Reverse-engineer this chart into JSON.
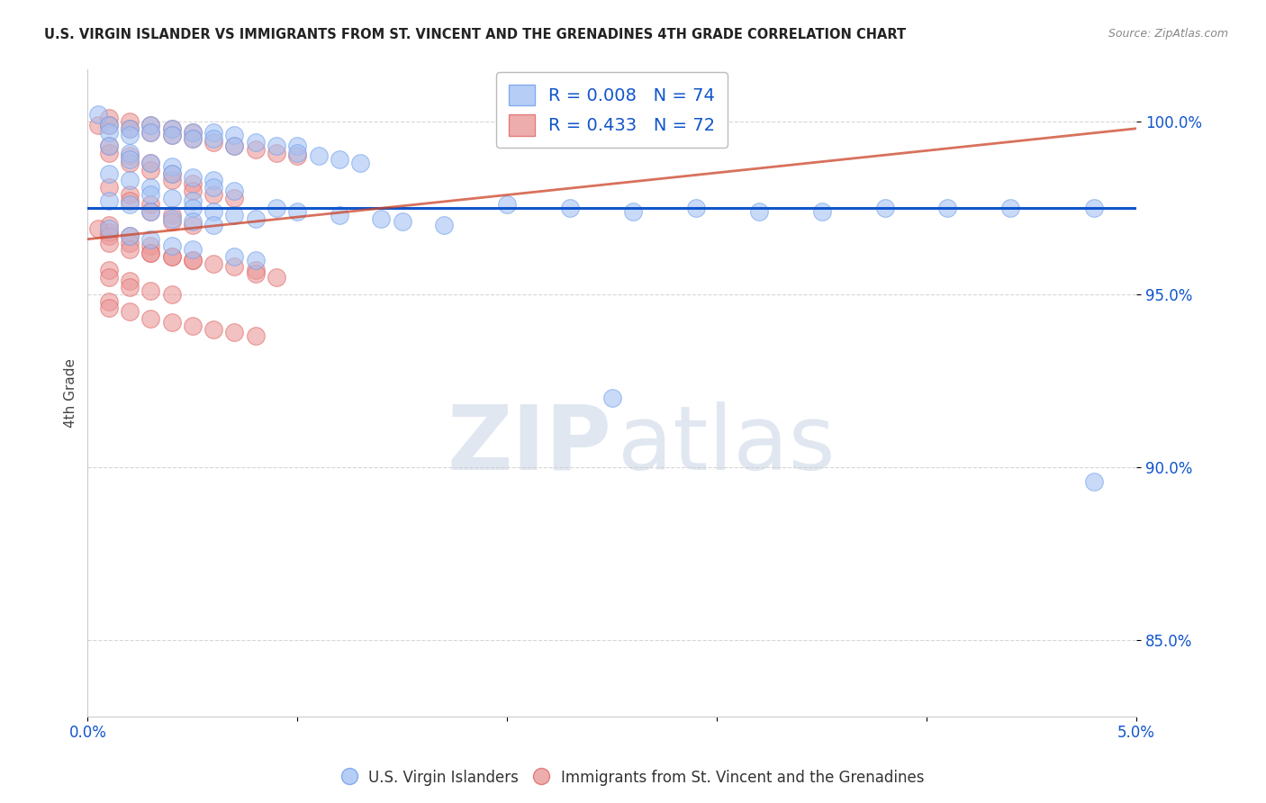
{
  "title": "U.S. VIRGIN ISLANDER VS IMMIGRANTS FROM ST. VINCENT AND THE GRENADINES 4TH GRADE CORRELATION CHART",
  "source": "Source: ZipAtlas.com",
  "ylabel": "4th Grade",
  "xlim": [
    0.0,
    0.05
  ],
  "ylim": [
    0.828,
    1.015
  ],
  "yticks": [
    0.85,
    0.9,
    0.95,
    1.0
  ],
  "yticklabels": [
    "85.0%",
    "90.0%",
    "95.0%",
    "100.0%"
  ],
  "blue_color": "#a4c2f4",
  "pink_color": "#ea9999",
  "blue_edge_color": "#6d9eeb",
  "pink_edge_color": "#e06666",
  "blue_line_color": "#1155cc",
  "pink_line_color": "#cc4125",
  "legend_R_blue": "0.008",
  "legend_N_blue": "74",
  "legend_R_pink": "0.433",
  "legend_N_pink": "72",
  "legend_label_blue": "U.S. Virgin Islanders",
  "legend_label_pink": "Immigrants from St. Vincent and the Grenadines",
  "watermark_zip": "ZIP",
  "watermark_atlas": "atlas",
  "background_color": "#ffffff",
  "grid_color": "#cccccc",
  "tick_color": "#1155cc",
  "blue_line_y": 0.975,
  "pink_line_y0": 0.966,
  "pink_line_y1": 0.998,
  "blue_scatter": [
    [
      0.0005,
      1.002
    ],
    [
      0.001,
      0.999
    ],
    [
      0.001,
      0.997
    ],
    [
      0.002,
      0.998
    ],
    [
      0.002,
      0.996
    ],
    [
      0.003,
      0.999
    ],
    [
      0.003,
      0.997
    ],
    [
      0.004,
      0.998
    ],
    [
      0.004,
      0.996
    ],
    [
      0.005,
      0.997
    ],
    [
      0.005,
      0.995
    ],
    [
      0.006,
      0.997
    ],
    [
      0.006,
      0.995
    ],
    [
      0.007,
      0.996
    ],
    [
      0.007,
      0.993
    ],
    [
      0.008,
      0.994
    ],
    [
      0.009,
      0.993
    ],
    [
      0.01,
      0.993
    ],
    [
      0.01,
      0.991
    ],
    [
      0.011,
      0.99
    ],
    [
      0.012,
      0.989
    ],
    [
      0.013,
      0.988
    ],
    [
      0.001,
      0.993
    ],
    [
      0.002,
      0.991
    ],
    [
      0.002,
      0.989
    ],
    [
      0.003,
      0.988
    ],
    [
      0.004,
      0.987
    ],
    [
      0.004,
      0.985
    ],
    [
      0.005,
      0.984
    ],
    [
      0.006,
      0.983
    ],
    [
      0.006,
      0.981
    ],
    [
      0.007,
      0.98
    ],
    [
      0.001,
      0.985
    ],
    [
      0.002,
      0.983
    ],
    [
      0.003,
      0.981
    ],
    [
      0.003,
      0.979
    ],
    [
      0.004,
      0.978
    ],
    [
      0.005,
      0.977
    ],
    [
      0.005,
      0.975
    ],
    [
      0.006,
      0.974
    ],
    [
      0.007,
      0.973
    ],
    [
      0.008,
      0.972
    ],
    [
      0.001,
      0.977
    ],
    [
      0.002,
      0.976
    ],
    [
      0.003,
      0.974
    ],
    [
      0.004,
      0.972
    ],
    [
      0.005,
      0.971
    ],
    [
      0.006,
      0.97
    ],
    [
      0.001,
      0.969
    ],
    [
      0.002,
      0.967
    ],
    [
      0.003,
      0.966
    ],
    [
      0.004,
      0.964
    ],
    [
      0.005,
      0.963
    ],
    [
      0.007,
      0.961
    ],
    [
      0.008,
      0.96
    ],
    [
      0.009,
      0.975
    ],
    [
      0.01,
      0.974
    ],
    [
      0.012,
      0.973
    ],
    [
      0.014,
      0.972
    ],
    [
      0.015,
      0.971
    ],
    [
      0.017,
      0.97
    ],
    [
      0.02,
      0.976
    ],
    [
      0.023,
      0.975
    ],
    [
      0.026,
      0.974
    ],
    [
      0.029,
      0.975
    ],
    [
      0.032,
      0.974
    ],
    [
      0.035,
      0.974
    ],
    [
      0.038,
      0.975
    ],
    [
      0.041,
      0.975
    ],
    [
      0.044,
      0.975
    ],
    [
      0.048,
      0.975
    ],
    [
      0.025,
      0.92
    ],
    [
      0.048,
      0.896
    ]
  ],
  "pink_scatter": [
    [
      0.0005,
      0.999
    ],
    [
      0.001,
      1.001
    ],
    [
      0.001,
      0.999
    ],
    [
      0.002,
      1.0
    ],
    [
      0.002,
      0.998
    ],
    [
      0.003,
      0.999
    ],
    [
      0.003,
      0.997
    ],
    [
      0.004,
      0.998
    ],
    [
      0.004,
      0.996
    ],
    [
      0.005,
      0.997
    ],
    [
      0.005,
      0.995
    ],
    [
      0.006,
      0.994
    ],
    [
      0.007,
      0.993
    ],
    [
      0.008,
      0.992
    ],
    [
      0.009,
      0.991
    ],
    [
      0.01,
      0.99
    ],
    [
      0.001,
      0.993
    ],
    [
      0.001,
      0.991
    ],
    [
      0.002,
      0.99
    ],
    [
      0.002,
      0.988
    ],
    [
      0.003,
      0.988
    ],
    [
      0.003,
      0.986
    ],
    [
      0.004,
      0.985
    ],
    [
      0.004,
      0.983
    ],
    [
      0.005,
      0.982
    ],
    [
      0.005,
      0.98
    ],
    [
      0.006,
      0.979
    ],
    [
      0.007,
      0.978
    ],
    [
      0.001,
      0.981
    ],
    [
      0.002,
      0.979
    ],
    [
      0.002,
      0.977
    ],
    [
      0.003,
      0.976
    ],
    [
      0.003,
      0.974
    ],
    [
      0.004,
      0.973
    ],
    [
      0.004,
      0.971
    ],
    [
      0.005,
      0.97
    ],
    [
      0.001,
      0.97
    ],
    [
      0.001,
      0.968
    ],
    [
      0.002,
      0.967
    ],
    [
      0.002,
      0.965
    ],
    [
      0.003,
      0.964
    ],
    [
      0.003,
      0.962
    ],
    [
      0.004,
      0.961
    ],
    [
      0.005,
      0.96
    ],
    [
      0.001,
      0.957
    ],
    [
      0.001,
      0.955
    ],
    [
      0.002,
      0.954
    ],
    [
      0.002,
      0.952
    ],
    [
      0.003,
      0.951
    ],
    [
      0.004,
      0.95
    ],
    [
      0.0005,
      0.969
    ],
    [
      0.001,
      0.967
    ],
    [
      0.001,
      0.965
    ],
    [
      0.002,
      0.963
    ],
    [
      0.003,
      0.962
    ],
    [
      0.004,
      0.961
    ],
    [
      0.005,
      0.96
    ],
    [
      0.006,
      0.959
    ],
    [
      0.007,
      0.958
    ],
    [
      0.008,
      0.957
    ],
    [
      0.001,
      0.948
    ],
    [
      0.001,
      0.946
    ],
    [
      0.002,
      0.945
    ],
    [
      0.003,
      0.943
    ],
    [
      0.004,
      0.942
    ],
    [
      0.005,
      0.941
    ],
    [
      0.006,
      0.94
    ],
    [
      0.007,
      0.939
    ],
    [
      0.008,
      0.938
    ],
    [
      0.009,
      0.955
    ],
    [
      0.008,
      0.956
    ]
  ]
}
